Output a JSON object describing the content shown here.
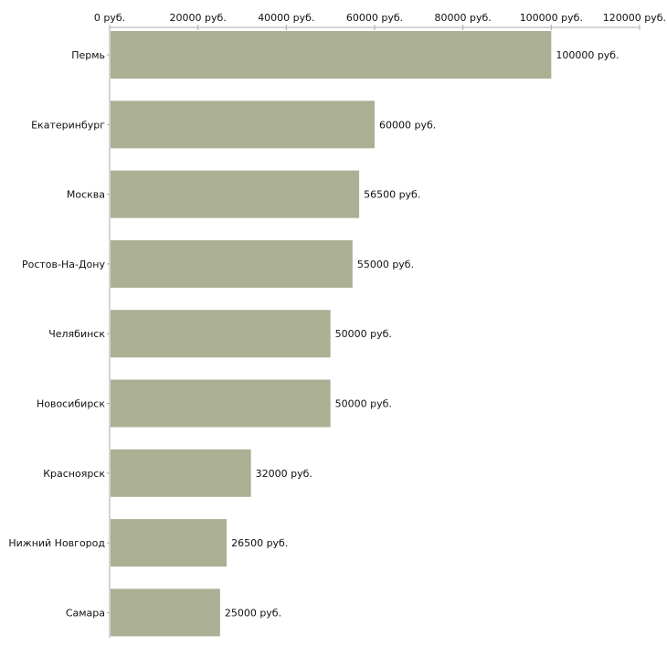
{
  "chart_data": {
    "type": "bar",
    "orientation": "horizontal",
    "title": "",
    "xlabel": "",
    "ylabel": "",
    "xlim": [
      0,
      120000
    ],
    "tick_values": [
      0,
      20000,
      40000,
      60000,
      80000,
      100000,
      120000
    ],
    "tick_labels": [
      "0 руб.",
      "20000 руб.",
      "40000 руб.",
      "60000 руб.",
      "80000 руб.",
      "100000 руб.",
      "120000 руб."
    ],
    "categories": [
      "Пермь",
      "Екатеринбург",
      "Москва",
      "Ростов-На-Дону",
      "Челябинск",
      "Новосибирск",
      "Красноярск",
      "Нижний Новгород",
      "Самара"
    ],
    "values": [
      100000,
      60000,
      56500,
      55000,
      50000,
      50000,
      32000,
      26500,
      25000
    ],
    "value_labels": [
      "100000 руб.",
      "60000 руб.",
      "56500 руб.",
      "55000 руб.",
      "50000 руб.",
      "50000 руб.",
      "32000 руб.",
      "26500 руб.",
      "25000 руб."
    ],
    "bar_color": "#abb094",
    "axis_color": "#aaaaaa"
  }
}
